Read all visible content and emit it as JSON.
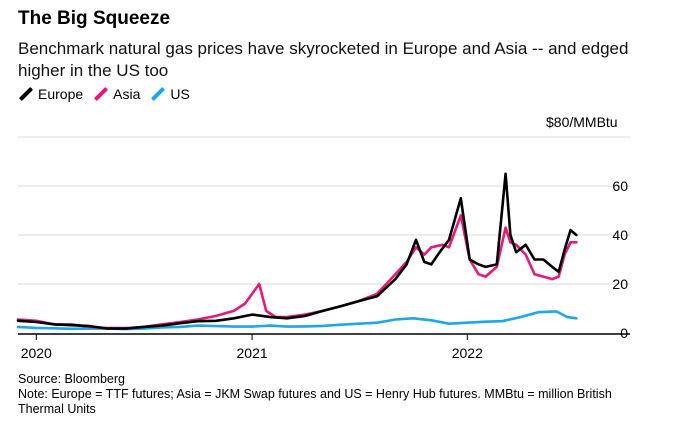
{
  "header": {
    "title": "The Big Squeeze",
    "subtitle": "Benchmark natural gas prices have skyrocketed in Europe and Asia -- and edged higher in the US too"
  },
  "legend": [
    {
      "label": "Europe",
      "color": "#000000"
    },
    {
      "label": "Asia",
      "color": "#e5197a"
    },
    {
      "label": "US",
      "color": "#1ea7e6"
    }
  ],
  "footer": {
    "source": "Source: Bloomberg",
    "note": "Note: Europe = TTF futures; Asia = JKM Swap futures and US = Henry Hub futures. MMBtu = million British Thermal Units"
  },
  "chart_data": {
    "type": "line",
    "ylabel": "$80/MMBtu",
    "ylim": [
      0,
      80
    ],
    "yticks": [
      0,
      20,
      40,
      60
    ],
    "yticklabels": [
      "0",
      "20",
      "40",
      "60"
    ],
    "xticks": [
      "2020-01-01",
      "2021-01-01",
      "2022-01-01"
    ],
    "xticklabels": [
      "2020",
      "2021",
      "2022"
    ],
    "xlim": [
      "2019-12-01",
      "2022-08-31"
    ],
    "grid": "horizontal",
    "series": [
      {
        "name": "Europe",
        "color": "#000000",
        "points": [
          [
            "2019-12-01",
            5
          ],
          [
            "2020-01-01",
            4.5
          ],
          [
            "2020-02-01",
            3.5
          ],
          [
            "2020-03-01",
            3.2
          ],
          [
            "2020-04-01",
            2.8
          ],
          [
            "2020-05-01",
            1.8
          ],
          [
            "2020-06-01",
            1.8
          ],
          [
            "2020-07-01",
            2.5
          ],
          [
            "2020-08-01",
            3
          ],
          [
            "2020-09-01",
            4
          ],
          [
            "2020-10-01",
            4.8
          ],
          [
            "2020-11-01",
            5
          ],
          [
            "2020-12-01",
            6
          ],
          [
            "2021-01-01",
            7.5
          ],
          [
            "2021-02-01",
            6.5
          ],
          [
            "2021-03-01",
            6
          ],
          [
            "2021-04-01",
            7
          ],
          [
            "2021-05-01",
            9
          ],
          [
            "2021-06-01",
            11
          ],
          [
            "2021-07-01",
            13
          ],
          [
            "2021-08-01",
            15
          ],
          [
            "2021-09-01",
            22
          ],
          [
            "2021-09-20",
            28
          ],
          [
            "2021-10-06",
            38
          ],
          [
            "2021-10-20",
            29
          ],
          [
            "2021-11-01",
            28
          ],
          [
            "2021-11-15",
            33
          ],
          [
            "2021-12-01",
            38
          ],
          [
            "2021-12-21",
            55
          ],
          [
            "2022-01-05",
            30
          ],
          [
            "2022-01-20",
            28
          ],
          [
            "2022-02-01",
            27
          ],
          [
            "2022-02-20",
            28
          ],
          [
            "2022-03-07",
            65
          ],
          [
            "2022-03-15",
            40
          ],
          [
            "2022-03-25",
            33
          ],
          [
            "2022-04-10",
            36
          ],
          [
            "2022-04-25",
            30
          ],
          [
            "2022-05-10",
            30
          ],
          [
            "2022-05-25",
            27
          ],
          [
            "2022-06-05",
            25
          ],
          [
            "2022-06-15",
            34
          ],
          [
            "2022-06-25",
            42
          ],
          [
            "2022-07-05",
            40
          ]
        ]
      },
      {
        "name": "Asia",
        "color": "#e5197a",
        "points": [
          [
            "2019-12-01",
            5.5
          ],
          [
            "2020-01-01",
            5
          ],
          [
            "2020-02-01",
            3.5
          ],
          [
            "2020-03-01",
            3.5
          ],
          [
            "2020-04-01",
            2.5
          ],
          [
            "2020-05-01",
            2
          ],
          [
            "2020-06-01",
            2
          ],
          [
            "2020-07-01",
            2.5
          ],
          [
            "2020-08-01",
            3.5
          ],
          [
            "2020-09-01",
            4.5
          ],
          [
            "2020-10-01",
            5.5
          ],
          [
            "2020-11-01",
            7
          ],
          [
            "2020-12-01",
            9
          ],
          [
            "2020-12-20",
            12
          ],
          [
            "2021-01-13",
            20
          ],
          [
            "2021-01-25",
            9
          ],
          [
            "2021-02-10",
            6.5
          ],
          [
            "2021-03-01",
            6.5
          ],
          [
            "2021-04-01",
            7.5
          ],
          [
            "2021-05-01",
            9
          ],
          [
            "2021-06-01",
            11
          ],
          [
            "2021-07-01",
            13
          ],
          [
            "2021-08-01",
            16
          ],
          [
            "2021-09-01",
            24
          ],
          [
            "2021-09-20",
            29
          ],
          [
            "2021-10-06",
            35
          ],
          [
            "2021-10-20",
            32
          ],
          [
            "2021-11-01",
            35
          ],
          [
            "2021-11-20",
            36
          ],
          [
            "2021-12-01",
            35
          ],
          [
            "2021-12-21",
            48
          ],
          [
            "2022-01-05",
            30
          ],
          [
            "2022-01-20",
            24
          ],
          [
            "2022-02-01",
            23
          ],
          [
            "2022-02-20",
            27
          ],
          [
            "2022-03-07",
            43
          ],
          [
            "2022-03-15",
            37
          ],
          [
            "2022-03-25",
            36
          ],
          [
            "2022-04-10",
            32
          ],
          [
            "2022-04-25",
            24
          ],
          [
            "2022-05-10",
            23
          ],
          [
            "2022-05-25",
            22
          ],
          [
            "2022-06-05",
            23
          ],
          [
            "2022-06-15",
            32
          ],
          [
            "2022-06-25",
            37
          ],
          [
            "2022-07-05",
            37
          ]
        ]
      },
      {
        "name": "US",
        "color": "#1ea7e6",
        "points": [
          [
            "2019-12-01",
            2.5
          ],
          [
            "2020-01-01",
            2.1
          ],
          [
            "2020-02-01",
            1.9
          ],
          [
            "2020-03-01",
            1.7
          ],
          [
            "2020-04-01",
            1.8
          ],
          [
            "2020-05-01",
            1.8
          ],
          [
            "2020-06-01",
            1.6
          ],
          [
            "2020-07-01",
            1.8
          ],
          [
            "2020-08-01",
            2.3
          ],
          [
            "2020-09-01",
            2.5
          ],
          [
            "2020-10-01",
            3
          ],
          [
            "2020-11-01",
            2.8
          ],
          [
            "2020-12-01",
            2.6
          ],
          [
            "2021-01-01",
            2.6
          ],
          [
            "2021-02-01",
            3
          ],
          [
            "2021-03-01",
            2.6
          ],
          [
            "2021-04-01",
            2.7
          ],
          [
            "2021-05-01",
            2.9
          ],
          [
            "2021-06-01",
            3.4
          ],
          [
            "2021-07-01",
            3.8
          ],
          [
            "2021-08-01",
            4.2
          ],
          [
            "2021-09-01",
            5.5
          ],
          [
            "2021-10-01",
            6
          ],
          [
            "2021-11-01",
            5.2
          ],
          [
            "2021-12-01",
            3.8
          ],
          [
            "2022-01-01",
            4.2
          ],
          [
            "2022-02-01",
            4.6
          ],
          [
            "2022-03-01",
            4.8
          ],
          [
            "2022-04-01",
            6.5
          ],
          [
            "2022-05-01",
            8.5
          ],
          [
            "2022-06-01",
            8.8
          ],
          [
            "2022-06-20",
            6.5
          ],
          [
            "2022-07-05",
            6
          ]
        ]
      }
    ]
  }
}
